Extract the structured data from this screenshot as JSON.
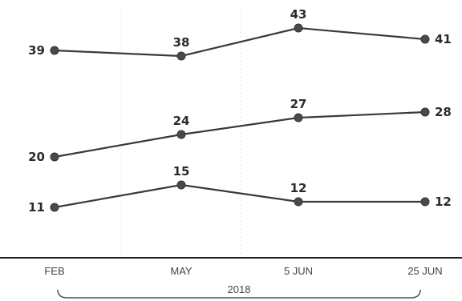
{
  "chart_data": {
    "type": "line",
    "title": "",
    "xlabel": "",
    "ylabel": "",
    "categories": [
      "FEB",
      "MAY",
      "5 JUN",
      "25 JUN"
    ],
    "group_label": "2018",
    "ylim": [
      0,
      48
    ],
    "grid": false,
    "legend": "none",
    "series": [
      {
        "values": [
          39,
          38,
          43,
          41
        ]
      },
      {
        "values": [
          20,
          24,
          27,
          28
        ]
      },
      {
        "values": [
          11,
          15,
          12,
          12
        ]
      }
    ]
  }
}
